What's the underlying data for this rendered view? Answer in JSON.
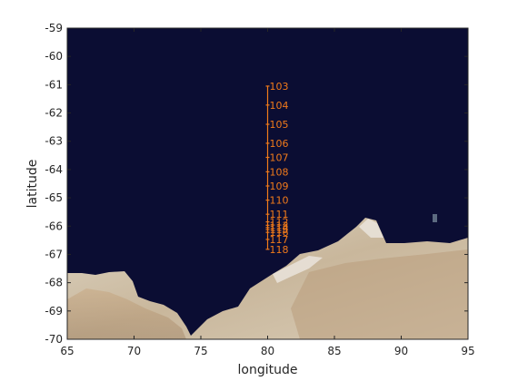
{
  "chart_data": {
    "type": "scatter",
    "xlabel": "longitude",
    "ylabel": "latitude",
    "xlim": [
      65,
      95
    ],
    "ylim": [
      -70,
      -59
    ],
    "xticks": [
      65,
      70,
      75,
      80,
      85,
      90,
      95
    ],
    "yticks": [
      -70,
      -69,
      -68,
      -67,
      -66,
      -65,
      -64,
      -63,
      -62,
      -61,
      -60,
      -59
    ],
    "grid": false,
    "background": "satellite imagery: dark navy ocean, Antarctic coastline and ice shelf in the south",
    "colors": {
      "ocean": "#0b0d33",
      "station": "#f07a1a",
      "axes": "#262626"
    },
    "stations": [
      {
        "label": "103",
        "lon": 80,
        "lat": -61.05
      },
      {
        "label": "104",
        "lon": 80,
        "lat": -61.72
      },
      {
        "label": "105",
        "lon": 80,
        "lat": -62.4
      },
      {
        "label": "106",
        "lon": 80,
        "lat": -63.07
      },
      {
        "label": "107",
        "lon": 80,
        "lat": -63.57
      },
      {
        "label": "108",
        "lon": 80,
        "lat": -64.08
      },
      {
        "label": "109",
        "lon": 80,
        "lat": -64.58
      },
      {
        "label": "110",
        "lon": 80,
        "lat": -65.08
      },
      {
        "label": "111",
        "lon": 80,
        "lat": -65.58
      },
      {
        "label": "112",
        "lon": 80,
        "lat": -65.85
      },
      {
        "label": "113",
        "lon": 80,
        "lat": -65.97
      },
      {
        "label": "114",
        "lon": 80,
        "lat": -66.05
      },
      {
        "label": "115",
        "lon": 80,
        "lat": -66.12
      },
      {
        "label": "116",
        "lon": 80,
        "lat": -66.22
      },
      {
        "label": "117",
        "lon": 80,
        "lat": -66.47
      },
      {
        "label": "118",
        "lon": 80,
        "lat": -66.82
      }
    ]
  }
}
